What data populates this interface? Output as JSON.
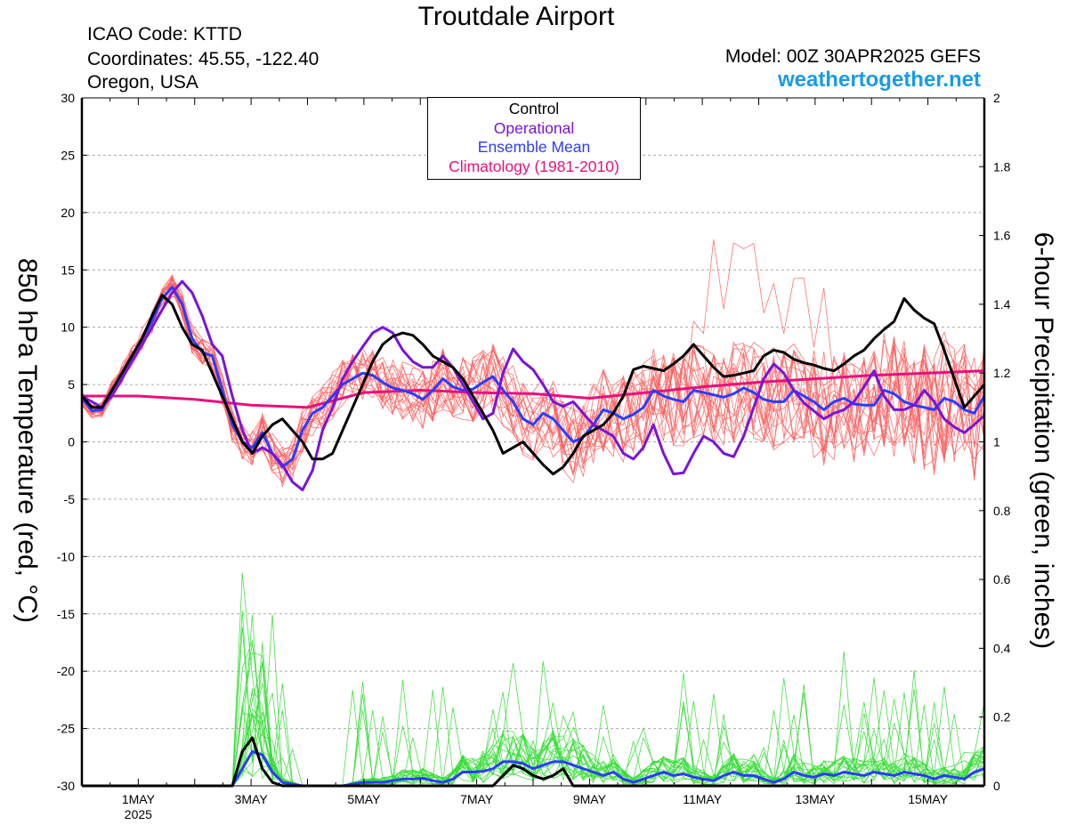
{
  "header": {
    "title": "Troutdale Airport",
    "icao": "ICAO Code: KTTD",
    "coordinates": "Coordinates: 45.55, -122.40",
    "region": "Oregon, USA",
    "model": "Model: 00Z 30APR2025 GEFS",
    "site": "weathertogether.net"
  },
  "legend": {
    "control": "Control",
    "operational": "Operational",
    "ensemble_mean": "Ensemble Mean",
    "climatology": "Climatology (1981-2010)"
  },
  "colors": {
    "control": "#000000",
    "operational": "#7a14d6",
    "ensemble_mean": "#2a3cff",
    "climatology": "#e8107c",
    "members_temp": "#ff5a5a",
    "members_precip": "#33dd33",
    "site": "#1a9be6"
  },
  "chart_data": {
    "type": "line",
    "xlabel": "",
    "ylabel": "850 hPa Temperature (red, °C)",
    "y2label": "6-hour Precipitation (green, inches)",
    "x_unit": "days after 00Z 30APR2025",
    "x_range": [
      0,
      16
    ],
    "ylim": [
      -30,
      30
    ],
    "y_ticks": [
      "30",
      "25",
      "20",
      "15",
      "10",
      "5",
      "0",
      "-5",
      "-10",
      "-15",
      "-20",
      "-25",
      "-30"
    ],
    "y_tick_values": [
      30,
      25,
      20,
      15,
      10,
      5,
      0,
      -5,
      -10,
      -15,
      -20,
      -25,
      -30
    ],
    "y2lim": [
      0,
      2
    ],
    "y2_ticks": [
      "2",
      "1.8",
      "1.6",
      "1.4",
      "1.2",
      "1",
      "0.8",
      "0.6",
      "0.4",
      "0.2",
      "0"
    ],
    "y2_tick_values": [
      2,
      1.8,
      1.6,
      1.4,
      1.2,
      1,
      0.8,
      0.6,
      0.4,
      0.2,
      0
    ],
    "x_ticks": [
      {
        "label": "1MAY",
        "sub": "2025",
        "x": 1
      },
      {
        "label": "3MAY",
        "sub": "",
        "x": 3
      },
      {
        "label": "5MAY",
        "sub": "",
        "x": 5
      },
      {
        "label": "7MAY",
        "sub": "",
        "x": 7
      },
      {
        "label": "9MAY",
        "sub": "",
        "x": 9
      },
      {
        "label": "11MAY",
        "sub": "",
        "x": 11
      },
      {
        "label": "13MAY",
        "sub": "",
        "x": 13
      },
      {
        "label": "15MAY",
        "sub": "",
        "x": 15
      }
    ],
    "grid": true,
    "grid_style": "dashed horizontal",
    "legend_position": "top-center",
    "series": [
      {
        "name": "Control",
        "role": "control",
        "axis": "left",
        "values": [
          4,
          3,
          3,
          4.5,
          6,
          7.5,
          9,
          11,
          12.8,
          12,
          10,
          8.5,
          8,
          6,
          4,
          2,
          0,
          -1,
          0.5,
          1.5,
          2,
          1,
          0,
          -1.5,
          -1.5,
          -1,
          1,
          3,
          5,
          7,
          8.5,
          9.2,
          9.5,
          9.3,
          8.5,
          7.5,
          7,
          6.5,
          5.5,
          4,
          2.5,
          1,
          -1,
          -0.5,
          0,
          -1,
          -2,
          -2.8,
          -2.2,
          -1,
          0.5,
          1,
          1.5,
          2.5,
          4,
          6.3,
          6.6,
          6.4,
          6.2,
          6.8,
          7.5,
          8.5,
          7.5,
          6.5,
          5.7,
          5.8,
          6,
          6.2,
          7.5,
          8,
          7.8,
          7.2,
          6.9,
          6.7,
          6.4,
          6.2,
          6.8,
          7.5,
          8,
          9,
          9.8,
          10.5,
          12.5,
          11.5,
          10.8,
          10.3,
          8,
          5.5,
          3,
          4,
          5
        ]
      },
      {
        "name": "Operational",
        "role": "operational",
        "axis": "left",
        "values": [
          4,
          3.5,
          3,
          4,
          5.5,
          7,
          8.5,
          10,
          11.5,
          13,
          14,
          13,
          11,
          8.5,
          7.5,
          4,
          1,
          -1,
          -0.5,
          -1,
          -2,
          -3.5,
          -4.2,
          -2.5,
          1,
          3,
          5.5,
          7,
          8.3,
          9.5,
          10,
          9.5,
          8,
          7,
          6.5,
          6.5,
          7.5,
          6.5,
          5,
          3.5,
          2,
          2.5,
          6,
          8.1,
          7,
          6.3,
          5,
          3.5,
          3.1,
          3.5,
          2.5,
          1.5,
          1,
          0.5,
          -1,
          -1.5,
          -0.5,
          1.5,
          -1,
          -2.8,
          -2.7,
          -1,
          0.5,
          0,
          -1,
          -1.3,
          0.5,
          3,
          5.5,
          6.8,
          6,
          4.5,
          3.4,
          2.7,
          2,
          2.5,
          2.8,
          3.5,
          4.8,
          6.2,
          4,
          2.8,
          2.8,
          3.2,
          4.5,
          3.5,
          2,
          1.3,
          0.8,
          1.5,
          2.3
        ]
      },
      {
        "name": "Ensemble Mean",
        "role": "ensemble_mean",
        "axis": "left",
        "values": [
          3.8,
          2.7,
          2.8,
          4.5,
          6,
          7.5,
          9,
          10.5,
          12.5,
          13.5,
          12,
          9,
          7.8,
          7.5,
          4.5,
          1.5,
          0,
          -0.5,
          0.8,
          -1,
          -2.2,
          -1.5,
          1,
          2.5,
          3,
          4,
          5,
          5.5,
          6,
          5.8,
          5.2,
          4.7,
          4.5,
          4.2,
          3.7,
          4.5,
          5.5,
          4.8,
          4.5,
          4.6,
          5.2,
          5.7,
          4.5,
          3.5,
          2,
          1.5,
          2.5,
          2,
          1,
          0,
          0.4,
          1.5,
          2.8,
          2.5,
          2,
          2.4,
          3,
          4.5,
          4,
          3.7,
          3.5,
          4.5,
          4.3,
          4.1,
          3.9,
          4.2,
          4.7,
          4.3,
          3.7,
          3.5,
          3.5,
          4.5,
          4,
          3.5,
          2.8,
          3.5,
          3.8,
          3.3,
          3.2,
          3.2,
          4.5,
          4.2,
          3.5,
          3.2,
          3,
          2.8,
          3.8,
          3.5,
          2.8,
          2.5,
          4
        ]
      },
      {
        "name": "Climatology (1981-2010)",
        "role": "climatology",
        "axis": "left",
        "x": [
          0,
          1,
          2,
          3,
          4,
          5,
          6,
          7,
          8,
          9,
          10,
          11,
          12,
          13,
          14,
          15,
          16
        ],
        "values": [
          4,
          4,
          3.7,
          3.2,
          3,
          4.3,
          4.5,
          4.3,
          4.2,
          3.8,
          4.3,
          4.8,
          5.2,
          5.5,
          5.8,
          6.0,
          6.2
        ]
      },
      {
        "name": "Control",
        "role": "control",
        "axis": "right",
        "values": [
          0,
          0,
          0,
          0,
          0,
          0,
          0,
          0,
          0,
          0,
          0,
          0,
          0,
          0,
          0,
          0,
          0.1,
          0.14,
          0.05,
          0.01,
          0,
          0,
          0,
          0,
          0,
          0,
          0,
          0,
          0,
          0,
          0,
          0,
          0,
          0,
          0,
          0,
          0,
          0,
          0,
          0,
          0,
          0,
          0.03,
          0.06,
          0.05,
          0.03,
          0.02,
          0.03,
          0.05,
          0,
          0,
          0,
          0,
          0,
          0,
          0,
          0,
          0,
          0,
          0,
          0,
          0,
          0,
          0,
          0,
          0,
          0,
          0,
          0,
          0,
          0,
          0,
          0,
          0,
          0,
          0,
          0,
          0,
          0,
          0,
          0,
          0,
          0,
          0,
          0,
          0,
          0,
          0,
          0,
          0,
          0
        ]
      },
      {
        "name": "Ensemble Mean",
        "role": "ensemble_mean",
        "axis": "right",
        "values": [
          0,
          0,
          0,
          0,
          0,
          0,
          0,
          0,
          0,
          0,
          0,
          0,
          0,
          0,
          0,
          0,
          0.05,
          0.1,
          0.09,
          0.04,
          0.01,
          0.005,
          0,
          0,
          0,
          0,
          0,
          0.005,
          0.01,
          0.01,
          0.01,
          0.015,
          0.02,
          0.02,
          0.022,
          0.015,
          0.01,
          0.02,
          0.04,
          0.04,
          0.042,
          0.05,
          0.07,
          0.07,
          0.065,
          0.05,
          0.06,
          0.07,
          0.07,
          0.06,
          0.05,
          0.04,
          0.03,
          0.04,
          0.02,
          0.01,
          0.02,
          0.03,
          0.04,
          0.03,
          0.035,
          0.025,
          0.02,
          0.015,
          0.03,
          0.04,
          0.03,
          0.03,
          0.02,
          0.01,
          0.02,
          0.04,
          0.03,
          0.025,
          0.035,
          0.03,
          0.04,
          0.035,
          0.03,
          0.04,
          0.035,
          0.03,
          0.04,
          0.035,
          0.03,
          0.02,
          0.03,
          0.025,
          0.02,
          0.04,
          0.05
        ]
      }
    ]
  }
}
